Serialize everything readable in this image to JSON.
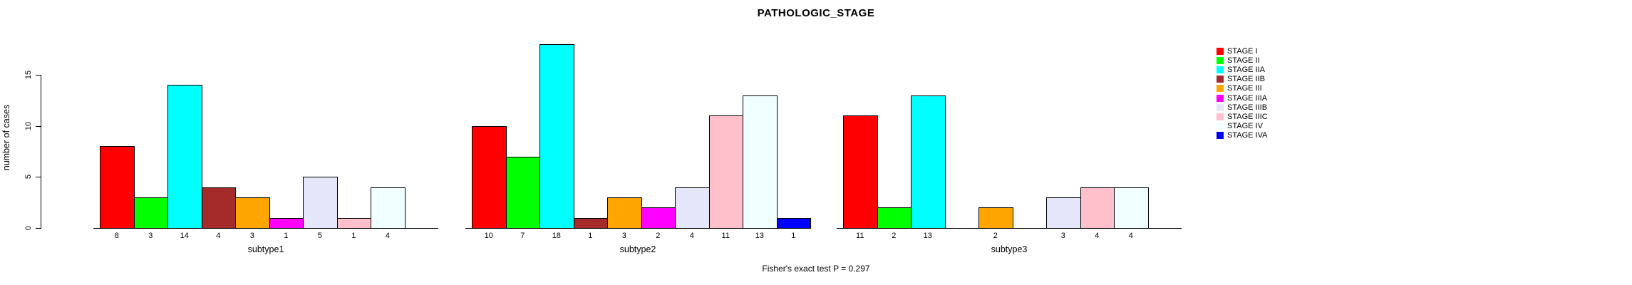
{
  "title": "PATHOLOGIC_STAGE",
  "footer": {
    "text": "Fisher's exact test P = 0.297"
  },
  "chart_data": {
    "type": "bar",
    "title": "PATHOLOGIC_STAGE",
    "xlabel": "",
    "ylabel": "number of cases",
    "ylim": [
      0,
      15
    ],
    "yticks": [
      0,
      5,
      10,
      15
    ],
    "grid": false,
    "legend_position": "right",
    "annotation": "Fisher's exact test P = 0.297",
    "categories": [
      "STAGE I",
      "STAGE II",
      "STAGE IIA",
      "STAGE IIB",
      "STAGE III",
      "STAGE IIIA",
      "STAGE IIIB",
      "STAGE IIIC",
      "STAGE IV",
      "STAGE IVA"
    ],
    "colors": [
      "#FF0000",
      "#00FF00",
      "#00FFFF",
      "#A52A2A",
      "#FFA500",
      "#FF00FF",
      "#E6E6FA",
      "#FFC0CB",
      "#F0FFFF",
      "#0000FF"
    ],
    "groups": [
      {
        "label": "subtype1",
        "values": [
          8,
          3,
          14,
          4,
          3,
          1,
          5,
          1,
          4,
          0
        ]
      },
      {
        "label": "subtype2",
        "values": [
          10,
          7,
          18,
          1,
          3,
          2,
          4,
          11,
          13,
          1
        ]
      },
      {
        "label": "subtype3",
        "values": [
          11,
          2,
          13,
          0,
          2,
          0,
          3,
          4,
          4,
          0
        ]
      }
    ]
  },
  "legend": {
    "items": [
      {
        "label": "STAGE I",
        "color": "#FF0000"
      },
      {
        "label": "STAGE II",
        "color": "#00FF00"
      },
      {
        "label": "STAGE IIA",
        "color": "#00FFFF"
      },
      {
        "label": "STAGE IIB",
        "color": "#A52A2A"
      },
      {
        "label": "STAGE III",
        "color": "#FFA500"
      },
      {
        "label": "STAGE IIIA",
        "color": "#FF00FF"
      },
      {
        "label": "STAGE IIIB",
        "color": "#E6E6FA"
      },
      {
        "label": "STAGE IIIC",
        "color": "#FFC0CB"
      },
      {
        "label": "STAGE IV",
        "color": "#F0FFFF"
      },
      {
        "label": "STAGE IVA",
        "color": "#0000FF"
      }
    ]
  }
}
